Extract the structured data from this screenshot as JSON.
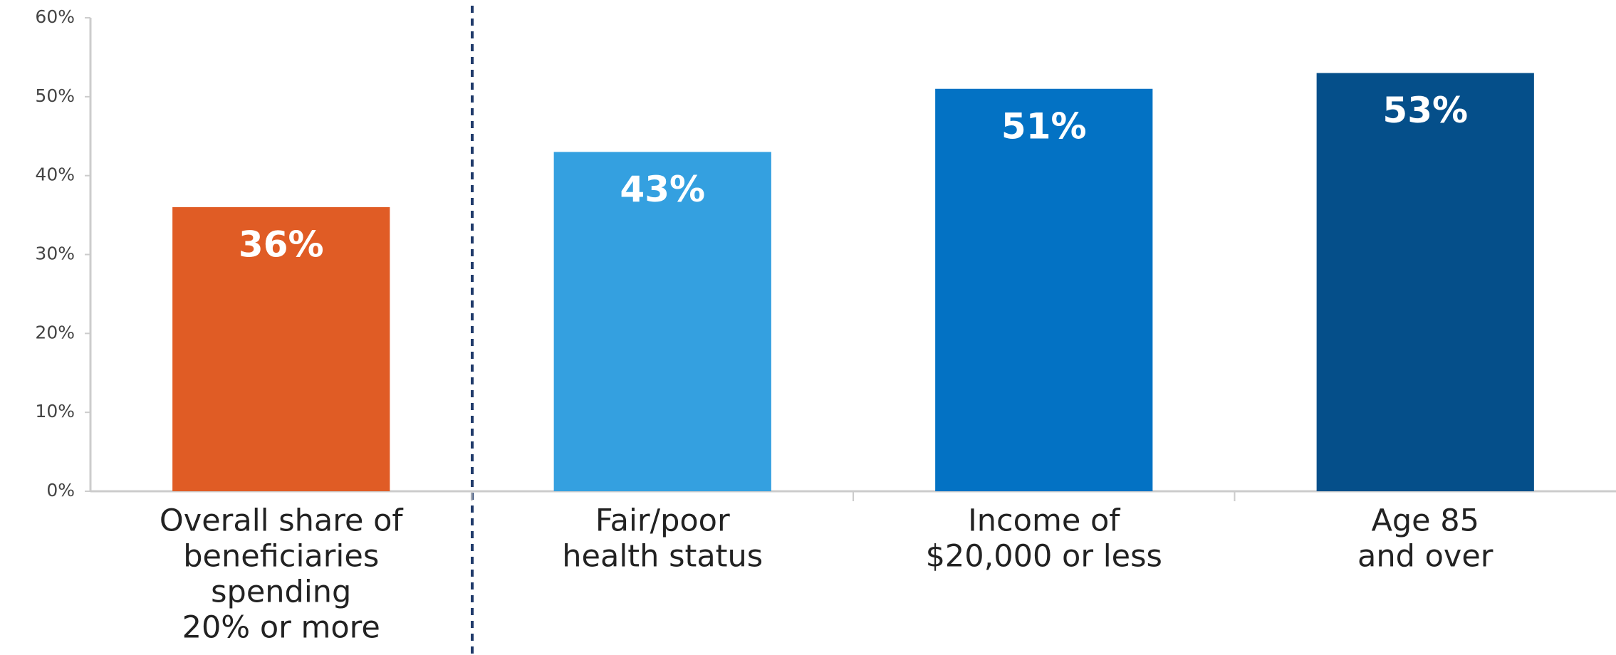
{
  "chart_data": {
    "type": "bar",
    "categories": [
      [
        "Overall share of",
        "beneficiaries",
        "spending",
        "20% or more"
      ],
      [
        "Fair/poor",
        "health status"
      ],
      [
        "Income of",
        "$20,000 or less"
      ],
      [
        "Age 85",
        "and over"
      ]
    ],
    "values": [
      36,
      43,
      51,
      53
    ],
    "value_labels": [
      "36%",
      "43%",
      "51%",
      "53%"
    ],
    "colors": [
      "#e05c25",
      "#34a0e0",
      "#0372c4",
      "#054f8a"
    ],
    "ylim": [
      0,
      60
    ],
    "yticks": [
      {
        "value": 0,
        "label": "0%"
      },
      {
        "value": 10,
        "label": "10%"
      },
      {
        "value": 20,
        "label": "20%"
      },
      {
        "value": 30,
        "label": "30%"
      },
      {
        "value": 40,
        "label": "40%"
      },
      {
        "value": 50,
        "label": "50%"
      },
      {
        "value": 60,
        "label": "60%"
      }
    ]
  }
}
